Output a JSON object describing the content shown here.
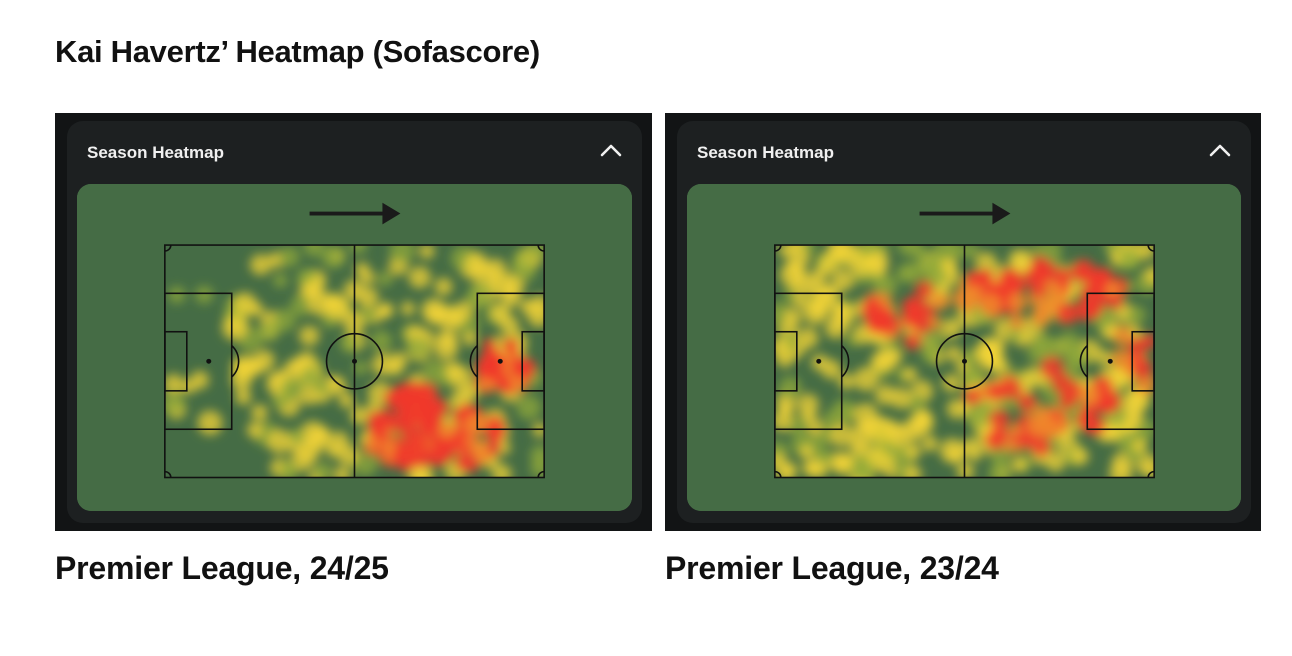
{
  "title": "Kai Havertz’ Heatmap (Sofascore)",
  "colors": {
    "panel_bg": "#121415",
    "card_bg": "#1d2021",
    "pitch_green": "#456c45",
    "line": "#111111",
    "heat_low": "#8fa83a",
    "heat_mid": "#f3d435",
    "heat_high": "#f0392a"
  },
  "panels": [
    {
      "header": "Season Heatmap",
      "collapse_icon": "chevron-up-icon",
      "direction_icon": "arrow-right-icon",
      "caption": "Premier League, 24/25"
    },
    {
      "header": "Season Heatmap",
      "collapse_icon": "chevron-up-icon",
      "direction_icon": "arrow-right-icon",
      "caption": "Premier League, 23/24"
    }
  ]
}
